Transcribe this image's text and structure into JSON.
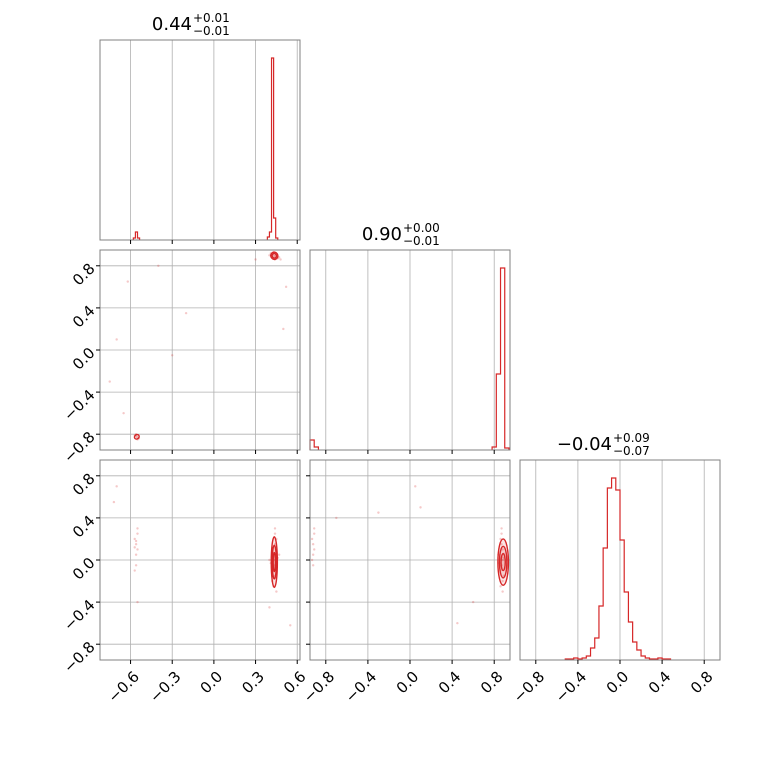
{
  "chart_data": {
    "type": "corner",
    "grid": true,
    "color": "#d62728",
    "grid_color": "#b0b0b0",
    "parameters": [
      {
        "index": 0,
        "range": [
          -0.82,
          0.62
        ],
        "ticks": [
          -0.6,
          -0.3,
          0.0,
          0.3,
          0.6
        ],
        "tick_labels": [
          "−0.6",
          "−0.3",
          "0.0",
          "0.3",
          "0.6"
        ],
        "title_value": "0.44",
        "title_plus": "+0.01",
        "title_minus": "−0.01"
      },
      {
        "index": 1,
        "range": [
          -0.95,
          0.95
        ],
        "ticks": [
          -0.8,
          -0.4,
          0.0,
          0.4,
          0.8
        ],
        "tick_labels": [
          "−0.8",
          "−0.4",
          "0.0",
          "0.4",
          "0.8"
        ],
        "title_value": "0.90",
        "title_plus": "+0.00",
        "title_minus": "−0.01"
      },
      {
        "index": 2,
        "range": [
          -0.95,
          0.95
        ],
        "ticks": [
          -0.8,
          -0.4,
          0.0,
          0.4,
          0.8
        ],
        "tick_labels": [
          "−0.8",
          "−0.4",
          "0.0",
          "0.4",
          "0.8"
        ],
        "title_value": "−0.04",
        "title_plus": "+0.09",
        "title_minus": "−0.07"
      }
    ],
    "histograms": [
      {
        "param": 0,
        "bins": [
          {
            "x0": -0.58,
            "x1": -0.565,
            "h": 0.01
          },
          {
            "x0": -0.565,
            "x1": -0.55,
            "h": 0.04
          },
          {
            "x0": -0.55,
            "x1": -0.535,
            "h": 0.01
          },
          {
            "x0": 0.385,
            "x1": 0.4,
            "h": 0.015
          },
          {
            "x0": 0.4,
            "x1": 0.415,
            "h": 0.04
          },
          {
            "x0": 0.415,
            "x1": 0.43,
            "h": 0.91
          },
          {
            "x0": 0.43,
            "x1": 0.445,
            "h": 0.11
          },
          {
            "x0": 0.445,
            "x1": 0.46,
            "h": 0.01
          }
        ]
      },
      {
        "param": 1,
        "bins": [
          {
            "x0": -0.95,
            "x1": -0.91,
            "h": 0.05
          },
          {
            "x0": -0.91,
            "x1": -0.87,
            "h": 0.015
          },
          {
            "x0": 0.78,
            "x1": 0.82,
            "h": 0.015
          },
          {
            "x0": 0.82,
            "x1": 0.86,
            "h": 0.38
          },
          {
            "x0": 0.86,
            "x1": 0.9,
            "h": 0.91
          },
          {
            "x0": 0.9,
            "x1": 0.94,
            "h": 0.01
          }
        ]
      },
      {
        "param": 2,
        "bins": [
          {
            "x0": -0.52,
            "x1": -0.48,
            "h": 0.005
          },
          {
            "x0": -0.48,
            "x1": -0.44,
            "h": 0.005
          },
          {
            "x0": -0.44,
            "x1": -0.4,
            "h": 0.01
          },
          {
            "x0": -0.4,
            "x1": -0.36,
            "h": 0.005
          },
          {
            "x0": -0.36,
            "x1": -0.32,
            "h": 0.01
          },
          {
            "x0": -0.32,
            "x1": -0.28,
            "h": 0.02
          },
          {
            "x0": -0.28,
            "x1": -0.24,
            "h": 0.06
          },
          {
            "x0": -0.24,
            "x1": -0.2,
            "h": 0.11
          },
          {
            "x0": -0.2,
            "x1": -0.16,
            "h": 0.27
          },
          {
            "x0": -0.16,
            "x1": -0.12,
            "h": 0.56
          },
          {
            "x0": -0.12,
            "x1": -0.08,
            "h": 0.86
          },
          {
            "x0": -0.08,
            "x1": -0.04,
            "h": 0.91
          },
          {
            "x0": -0.04,
            "x1": 0.0,
            "h": 0.85
          },
          {
            "x0": 0.0,
            "x1": 0.04,
            "h": 0.6
          },
          {
            "x0": 0.04,
            "x1": 0.08,
            "h": 0.34
          },
          {
            "x0": 0.08,
            "x1": 0.12,
            "h": 0.19
          },
          {
            "x0": 0.12,
            "x1": 0.16,
            "h": 0.09
          },
          {
            "x0": 0.16,
            "x1": 0.2,
            "h": 0.05
          },
          {
            "x0": 0.2,
            "x1": 0.24,
            "h": 0.02
          },
          {
            "x0": 0.24,
            "x1": 0.28,
            "h": 0.01
          },
          {
            "x0": 0.28,
            "x1": 0.32,
            "h": 0.005
          },
          {
            "x0": 0.32,
            "x1": 0.36,
            "h": 0.005
          },
          {
            "x0": 0.36,
            "x1": 0.4,
            "h": 0.01
          },
          {
            "x0": 0.4,
            "x1": 0.44,
            "h": 0.005
          },
          {
            "x0": 0.44,
            "x1": 0.48,
            "h": 0.005
          }
        ]
      }
    ],
    "scatter": [
      {
        "px": 0,
        "py": 1,
        "points": [
          [
            0.43,
            0.9
          ],
          [
            0.42,
            0.91
          ],
          [
            0.44,
            0.89
          ],
          [
            0.45,
            0.88
          ],
          [
            0.41,
            0.92
          ],
          [
            0.46,
            0.87
          ],
          [
            0.44,
            0.86
          ],
          [
            0.43,
            0.93
          ],
          [
            0.47,
            0.88
          ],
          [
            0.4,
            0.9
          ],
          [
            0.48,
            0.86
          ],
          [
            0.45,
            0.91
          ],
          [
            -0.56,
            -0.82
          ],
          [
            -0.55,
            -0.83
          ],
          [
            -0.57,
            -0.81
          ],
          [
            -0.54,
            -0.84
          ],
          [
            -0.56,
            -0.8
          ],
          [
            -0.55,
            -0.85
          ],
          [
            -0.62,
            0.65
          ],
          [
            -0.7,
            0.1
          ],
          [
            -0.3,
            -0.05
          ],
          [
            -0.75,
            -0.3
          ],
          [
            0.5,
            0.2
          ],
          [
            -0.2,
            0.35
          ],
          [
            -0.65,
            -0.6
          ],
          [
            0.52,
            0.6
          ],
          [
            -0.4,
            0.8
          ],
          [
            0.3,
            0.86
          ]
        ]
      },
      {
        "px": 0,
        "py": 2,
        "points": [
          [
            -0.56,
            0.15
          ],
          [
            -0.55,
            0.1
          ],
          [
            -0.57,
            0.2
          ],
          [
            -0.56,
            0.05
          ],
          [
            -0.55,
            0.25
          ],
          [
            -0.57,
            0.12
          ],
          [
            -0.56,
            -0.05
          ],
          [
            -0.55,
            0.3
          ],
          [
            -0.57,
            -0.1
          ],
          [
            -0.56,
            0.18
          ],
          [
            0.43,
            0.0
          ],
          [
            0.44,
            -0.05
          ],
          [
            0.43,
            0.06
          ],
          [
            0.45,
            -0.1
          ],
          [
            0.42,
            0.1
          ],
          [
            0.44,
            0.15
          ],
          [
            0.43,
            -0.15
          ],
          [
            0.45,
            0.2
          ],
          [
            0.42,
            -0.2
          ],
          [
            0.44,
            0.25
          ],
          [
            0.43,
            -0.25
          ],
          [
            0.46,
            0.02
          ],
          [
            0.41,
            -0.03
          ],
          [
            0.45,
            -0.3
          ],
          [
            0.44,
            0.3
          ],
          [
            0.47,
            0.05
          ],
          [
            0.4,
            0.0
          ],
          [
            -0.7,
            0.7
          ],
          [
            -0.72,
            0.55
          ],
          [
            -0.55,
            -0.4
          ],
          [
            0.4,
            -0.45
          ],
          [
            0.55,
            -0.62
          ]
        ]
      },
      {
        "px": 1,
        "py": 2,
        "points": [
          [
            -0.92,
            0.15
          ],
          [
            -0.91,
            0.1
          ],
          [
            -0.93,
            0.2
          ],
          [
            -0.92,
            0.05
          ],
          [
            -0.91,
            0.25
          ],
          [
            -0.93,
            0.0
          ],
          [
            -0.92,
            -0.05
          ],
          [
            -0.91,
            0.3
          ],
          [
            0.88,
            0.0
          ],
          [
            0.87,
            -0.05
          ],
          [
            0.89,
            0.06
          ],
          [
            0.86,
            -0.1
          ],
          [
            0.88,
            0.1
          ],
          [
            0.87,
            0.15
          ],
          [
            0.89,
            -0.15
          ],
          [
            0.86,
            0.2
          ],
          [
            0.88,
            -0.2
          ],
          [
            0.87,
            0.25
          ],
          [
            0.86,
            -0.25
          ],
          [
            0.89,
            0.02
          ],
          [
            0.85,
            -0.03
          ],
          [
            0.88,
            -0.3
          ],
          [
            0.84,
            0.05
          ],
          [
            0.87,
            0.3
          ],
          [
            -0.7,
            0.4
          ],
          [
            0.1,
            0.5
          ],
          [
            0.6,
            -0.4
          ],
          [
            0.45,
            -0.6
          ],
          [
            -0.3,
            0.45
          ],
          [
            0.05,
            0.7
          ]
        ]
      }
    ],
    "contours": [
      {
        "px": 0,
        "py": 1,
        "level_shapes": [
          {
            "cx": 0.435,
            "cy": 0.895,
            "rx": 0.025,
            "ry": 0.035,
            "rot": -35
          },
          {
            "cx": 0.435,
            "cy": 0.895,
            "rx": 0.015,
            "ry": 0.022,
            "rot": -35
          },
          {
            "cx": -0.555,
            "cy": -0.825,
            "rx": 0.018,
            "ry": 0.02,
            "rot": -35
          }
        ]
      },
      {
        "px": 0,
        "py": 2,
        "level_shapes": [
          {
            "cx": 0.435,
            "cy": -0.02,
            "rx": 0.022,
            "ry": 0.24,
            "rot": 0
          },
          {
            "cx": 0.435,
            "cy": -0.02,
            "rx": 0.015,
            "ry": 0.16,
            "rot": 0
          },
          {
            "cx": 0.435,
            "cy": -0.02,
            "rx": 0.008,
            "ry": 0.09,
            "rot": 0
          }
        ]
      },
      {
        "px": 1,
        "py": 2,
        "level_shapes": [
          {
            "cx": 0.885,
            "cy": -0.02,
            "rx": 0.05,
            "ry": 0.22,
            "rot": 0
          },
          {
            "cx": 0.885,
            "cy": -0.02,
            "rx": 0.035,
            "ry": 0.15,
            "rot": 0
          },
          {
            "cx": 0.885,
            "cy": -0.02,
            "rx": 0.02,
            "ry": 0.08,
            "rot": 0
          }
        ]
      }
    ]
  }
}
